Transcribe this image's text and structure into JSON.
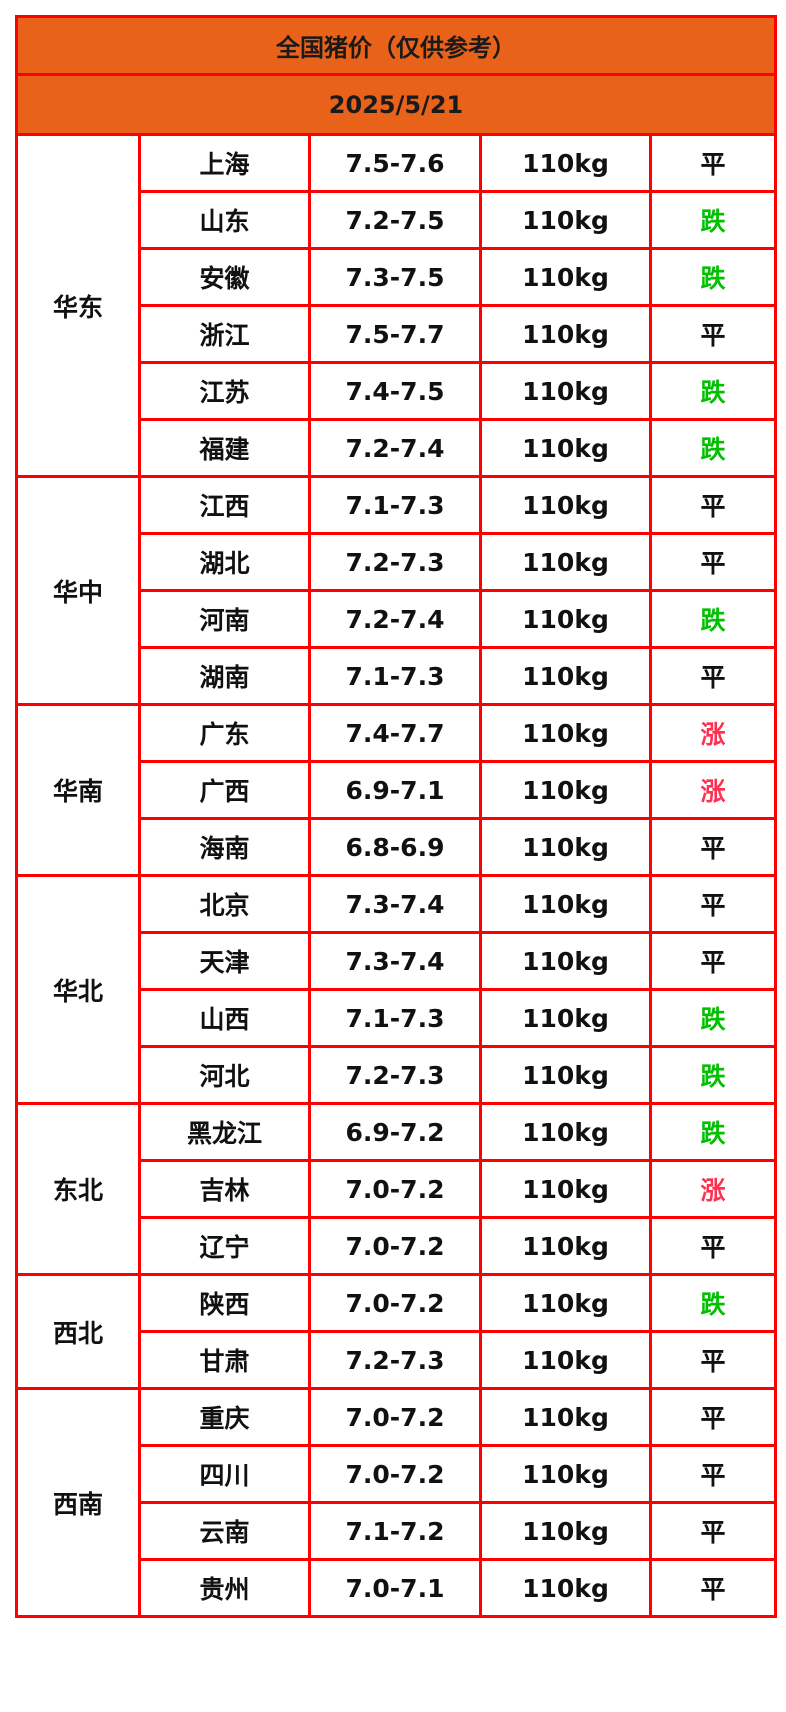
{
  "title": "全国猪价（仅供参考）",
  "date": "2025/5/21",
  "colors": {
    "header_bg": "#e8621a",
    "border": "#ff0000",
    "down": "#00c000",
    "up": "#ff3050",
    "flat": "#111111"
  },
  "regions": [
    {
      "name": "华东",
      "rows": [
        {
          "province": "上海",
          "price": "7.5-7.6",
          "weight": "110kg",
          "trend": "平"
        },
        {
          "province": "山东",
          "price": "7.2-7.5",
          "weight": "110kg",
          "trend": "跌"
        },
        {
          "province": "安徽",
          "price": "7.3-7.5",
          "weight": "110kg",
          "trend": "跌"
        },
        {
          "province": "浙江",
          "price": "7.5-7.7",
          "weight": "110kg",
          "trend": "平"
        },
        {
          "province": "江苏",
          "price": "7.4-7.5",
          "weight": "110kg",
          "trend": "跌"
        },
        {
          "province": "福建",
          "price": "7.2-7.4",
          "weight": "110kg",
          "trend": "跌"
        }
      ]
    },
    {
      "name": "华中",
      "rows": [
        {
          "province": "江西",
          "price": "7.1-7.3",
          "weight": "110kg",
          "trend": "平"
        },
        {
          "province": "湖北",
          "price": "7.2-7.3",
          "weight": "110kg",
          "trend": "平"
        },
        {
          "province": "河南",
          "price": "7.2-7.4",
          "weight": "110kg",
          "trend": "跌"
        },
        {
          "province": "湖南",
          "price": "7.1-7.3",
          "weight": "110kg",
          "trend": "平"
        }
      ]
    },
    {
      "name": "华南",
      "rows": [
        {
          "province": "广东",
          "price": "7.4-7.7",
          "weight": "110kg",
          "trend": "涨"
        },
        {
          "province": "广西",
          "price": "6.9-7.1",
          "weight": "110kg",
          "trend": "涨"
        },
        {
          "province": "海南",
          "price": "6.8-6.9",
          "weight": "110kg",
          "trend": "平"
        }
      ]
    },
    {
      "name": "华北",
      "rows": [
        {
          "province": "北京",
          "price": "7.3-7.4",
          "weight": "110kg",
          "trend": "平"
        },
        {
          "province": "天津",
          "price": "7.3-7.4",
          "weight": "110kg",
          "trend": "平"
        },
        {
          "province": "山西",
          "price": "7.1-7.3",
          "weight": "110kg",
          "trend": "跌"
        },
        {
          "province": "河北",
          "price": "7.2-7.3",
          "weight": "110kg",
          "trend": "跌"
        }
      ]
    },
    {
      "name": "东北",
      "rows": [
        {
          "province": "黑龙江",
          "price": "6.9-7.2",
          "weight": "110kg",
          "trend": "跌"
        },
        {
          "province": "吉林",
          "price": "7.0-7.2",
          "weight": "110kg",
          "trend": "涨"
        },
        {
          "province": "辽宁",
          "price": "7.0-7.2",
          "weight": "110kg",
          "trend": "平"
        }
      ]
    },
    {
      "name": "西北",
      "rows": [
        {
          "province": "陕西",
          "price": "7.0-7.2",
          "weight": "110kg",
          "trend": "跌"
        },
        {
          "province": "甘肃",
          "price": "7.2-7.3",
          "weight": "110kg",
          "trend": "平"
        }
      ]
    },
    {
      "name": "西南",
      "rows": [
        {
          "province": "重庆",
          "price": "7.0-7.2",
          "weight": "110kg",
          "trend": "平"
        },
        {
          "province": "四川",
          "price": "7.0-7.2",
          "weight": "110kg",
          "trend": "平"
        },
        {
          "province": "云南",
          "price": "7.1-7.2",
          "weight": "110kg",
          "trend": "平"
        },
        {
          "province": "贵州",
          "price": "7.0-7.1",
          "weight": "110kg",
          "trend": "平"
        }
      ]
    }
  ]
}
